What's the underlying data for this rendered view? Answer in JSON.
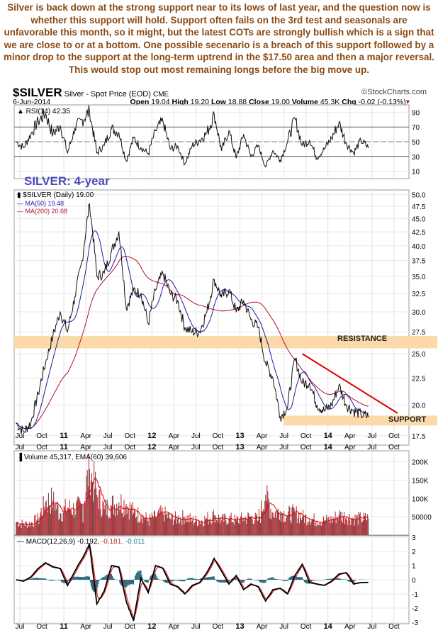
{
  "commentary": "Silver is back down at the strong support near to its lows of last year, and the question now is whether this support will hold. Support often fails on the 3rd test and seasonals are unfavorable this month, so it might, but the latest COTs are strongly bullish which is a sign that we are close to or at a bottom. One possible secenario is a breach of this support followed by a minor drop to the support at the long-term uptrend in the $17.50 area and then a major reversal. This would stop out most remaining longs before the big move up.",
  "header": {
    "symbol": "$SILVER",
    "name": "Silver - Spot Price (EOD)",
    "exchange": "CME",
    "source": "©StockCharts.com",
    "date": "6-Jun-2014",
    "open_label": "Open",
    "open": "19.04",
    "high_label": "High",
    "high": "19.20",
    "low_label": "Low",
    "low": "18.88",
    "close_label": "Close",
    "close": "19.00",
    "volume_label": "Volume",
    "volume": "45.3K",
    "chg_label": "Chg",
    "chg": "-0.02 (-0.13%)"
  },
  "colors": {
    "price": "#000000",
    "ma50": "#1a1aa0",
    "ma200": "#b01030",
    "band": "#fbd9a8",
    "trendline": "#e00000",
    "volume": "#c0343c",
    "volume_down": "#555555",
    "ema": "#e00000",
    "macd_hist": "#2a6b80",
    "note": "#8b4a12",
    "label_blue": "#4b4bbb"
  },
  "chart_data": [
    {
      "type": "line",
      "panel": "rsi",
      "legend": "RSI(14) 42.35",
      "yticks": [
        90,
        70,
        50,
        30,
        10
      ],
      "ylim": [
        0,
        100
      ],
      "overbought": 70,
      "oversold": 30,
      "values": [
        [
          "2010-06",
          50
        ],
        [
          "2010-07",
          42
        ],
        [
          "2010-08",
          60
        ],
        [
          "2010-09",
          78
        ],
        [
          "2010-10",
          88
        ],
        [
          "2010-11",
          60
        ],
        [
          "2010-12",
          72
        ],
        [
          "2011-01",
          35
        ],
        [
          "2011-02",
          68
        ],
        [
          "2011-03",
          80
        ],
        [
          "2011-04",
          91
        ],
        [
          "2011-05",
          35
        ],
        [
          "2011-06",
          45
        ],
        [
          "2011-07",
          68
        ],
        [
          "2011-08",
          62
        ],
        [
          "2011-09",
          24
        ],
        [
          "2011-10",
          55
        ],
        [
          "2011-11",
          42
        ],
        [
          "2011-12",
          34
        ],
        [
          "2012-01",
          65
        ],
        [
          "2012-02",
          78
        ],
        [
          "2012-03",
          40
        ],
        [
          "2012-04",
          44
        ],
        [
          "2012-05",
          20
        ],
        [
          "2012-06",
          45
        ],
        [
          "2012-07",
          52
        ],
        [
          "2012-08",
          62
        ],
        [
          "2012-09",
          87
        ],
        [
          "2012-10",
          38
        ],
        [
          "2012-11",
          65
        ],
        [
          "2012-12",
          28
        ],
        [
          "2013-01",
          60
        ],
        [
          "2013-02",
          30
        ],
        [
          "2013-03",
          45
        ],
        [
          "2013-04",
          16
        ],
        [
          "2013-05",
          38
        ],
        [
          "2013-06",
          25
        ],
        [
          "2013-07",
          50
        ],
        [
          "2013-08",
          82
        ],
        [
          "2013-09",
          45
        ],
        [
          "2013-10",
          52
        ],
        [
          "2013-11",
          28
        ],
        [
          "2013-12",
          40
        ],
        [
          "2014-01",
          55
        ],
        [
          "2014-02",
          76
        ],
        [
          "2014-03",
          48
        ],
        [
          "2014-04",
          35
        ],
        [
          "2014-05",
          52
        ],
        [
          "2014-06",
          42
        ]
      ]
    },
    {
      "type": "line",
      "panel": "price",
      "legend": "$SILVER (Daily) 19.00",
      "ma50_legend": "MA(50) 19.48",
      "ma200_legend": "MA(200) 20.68",
      "scale": "log",
      "ylim": [
        16.8,
        51
      ],
      "yticks": [
        "50.0",
        "47.5",
        "45.0",
        "42.5",
        "40.0",
        "37.5",
        "35.0",
        "32.5",
        "30.0",
        "27.5",
        "25.0",
        "22.5",
        "20.0",
        "17.5"
      ],
      "title_label": "SILVER: 4-year",
      "resistance_label": "RESISTANCE",
      "support_label": "SUPPORT",
      "resistance_zone": [
        25.6,
        27
      ],
      "support_zone": [
        18.3,
        19.1
      ],
      "trendline": [
        [
          "2013-09",
          25
        ],
        [
          "2014-10",
          19.3
        ]
      ],
      "values": [
        [
          "2010-06",
          18.5
        ],
        [
          "2010-07",
          17.8
        ],
        [
          "2010-08",
          18.5
        ],
        [
          "2010-09",
          21
        ],
        [
          "2010-10",
          24
        ],
        [
          "2010-11",
          27
        ],
        [
          "2010-12",
          30
        ],
        [
          "2011-01",
          27.5
        ],
        [
          "2011-02",
          32
        ],
        [
          "2011-03",
          37.5
        ],
        [
          "2011-04",
          48
        ],
        [
          "2011-05",
          35
        ],
        [
          "2011-06",
          35.5
        ],
        [
          "2011-07",
          39
        ],
        [
          "2011-08",
          42.5
        ],
        [
          "2011-09",
          30.5
        ],
        [
          "2011-10",
          33
        ],
        [
          "2011-11",
          32.5
        ],
        [
          "2011-12",
          28.5
        ],
        [
          "2012-01",
          33
        ],
        [
          "2012-02",
          35.5
        ],
        [
          "2012-03",
          32.5
        ],
        [
          "2012-04",
          31.5
        ],
        [
          "2012-05",
          28
        ],
        [
          "2012-06",
          27.5
        ],
        [
          "2012-07",
          27.5
        ],
        [
          "2012-08",
          30
        ],
        [
          "2012-09",
          34.5
        ],
        [
          "2012-10",
          32
        ],
        [
          "2012-11",
          33
        ],
        [
          "2012-12",
          30
        ],
        [
          "2013-01",
          31.5
        ],
        [
          "2013-02",
          29
        ],
        [
          "2013-03",
          28
        ],
        [
          "2013-04",
          24
        ],
        [
          "2013-05",
          22.5
        ],
        [
          "2013-06",
          19
        ],
        [
          "2013-07",
          19.8
        ],
        [
          "2013-08",
          24.5
        ],
        [
          "2013-09",
          22
        ],
        [
          "2013-10",
          22
        ],
        [
          "2013-11",
          20
        ],
        [
          "2013-12",
          19.5
        ],
        [
          "2014-01",
          20
        ],
        [
          "2014-02",
          21.8
        ],
        [
          "2014-03",
          20
        ],
        [
          "2014-04",
          19.5
        ],
        [
          "2014-05",
          19.2
        ],
        [
          "2014-06",
          19
        ]
      ]
    },
    {
      "type": "bar",
      "panel": "volume",
      "legend": "Volume 45,317, EMA(60) 39,606",
      "yticks": [
        "200K",
        "150K",
        "100K",
        "50000"
      ],
      "ylim": [
        0,
        230000
      ],
      "values": [
        [
          "2010-06",
          35000
        ],
        [
          "2010-07",
          30000
        ],
        [
          "2010-08",
          32000
        ],
        [
          "2010-09",
          45000
        ],
        [
          "2010-10",
          90000
        ],
        [
          "2010-11",
          95000
        ],
        [
          "2010-12",
          60000
        ],
        [
          "2011-01",
          75000
        ],
        [
          "2011-02",
          70000
        ],
        [
          "2011-03",
          80000
        ],
        [
          "2011-04",
          180000
        ],
        [
          "2011-05",
          110000
        ],
        [
          "2011-06",
          70000
        ],
        [
          "2011-07",
          80000
        ],
        [
          "2011-08",
          90000
        ],
        [
          "2011-09",
          85000
        ],
        [
          "2011-10",
          60000
        ],
        [
          "2011-11",
          55000
        ],
        [
          "2011-12",
          40000
        ],
        [
          "2012-01",
          50000
        ],
        [
          "2012-02",
          60000
        ],
        [
          "2012-03",
          45000
        ],
        [
          "2012-04",
          45000
        ],
        [
          "2012-05",
          50000
        ],
        [
          "2012-06",
          40000
        ],
        [
          "2012-07",
          38000
        ],
        [
          "2012-08",
          45000
        ],
        [
          "2012-09",
          55000
        ],
        [
          "2012-10",
          40000
        ],
        [
          "2012-11",
          45000
        ],
        [
          "2012-12",
          40000
        ],
        [
          "2013-01",
          45000
        ],
        [
          "2013-02",
          50000
        ],
        [
          "2013-03",
          40000
        ],
        [
          "2013-04",
          110000
        ],
        [
          "2013-05",
          60000
        ],
        [
          "2013-06",
          65000
        ],
        [
          "2013-07",
          55000
        ],
        [
          "2013-08",
          60000
        ],
        [
          "2013-09",
          50000
        ],
        [
          "2013-10",
          45000
        ],
        [
          "2013-11",
          40000
        ],
        [
          "2013-12",
          40000
        ],
        [
          "2014-01",
          42000
        ],
        [
          "2014-02",
          55000
        ],
        [
          "2014-03",
          50000
        ],
        [
          "2014-04",
          45000
        ],
        [
          "2014-05",
          45000
        ],
        [
          "2014-06",
          45317
        ]
      ]
    },
    {
      "type": "line",
      "panel": "macd",
      "legend": "MACD(12,26,9)",
      "macd": "-0.192",
      "signal": "-0.181",
      "hist": "-0.011",
      "yticks": [
        "3",
        "2",
        "1",
        "0",
        "-1",
        "-2",
        "-3"
      ],
      "ylim": [
        -3.1,
        3.1
      ],
      "values": [
        [
          "2010-06",
          0
        ],
        [
          "2010-07",
          -0.1
        ],
        [
          "2010-08",
          0.2
        ],
        [
          "2010-09",
          0.8
        ],
        [
          "2010-10",
          1.2
        ],
        [
          "2010-11",
          0.9
        ],
        [
          "2010-12",
          0.8
        ],
        [
          "2011-01",
          -0.4
        ],
        [
          "2011-02",
          0.6
        ],
        [
          "2011-03",
          1.5
        ],
        [
          "2011-04",
          2.5
        ],
        [
          "2011-05",
          -1.7
        ],
        [
          "2011-06",
          -0.8
        ],
        [
          "2011-07",
          1.0
        ],
        [
          "2011-08",
          0.9
        ],
        [
          "2011-09",
          -1.5
        ],
        [
          "2011-10",
          -2.9
        ],
        [
          "2011-11",
          0.1
        ],
        [
          "2011-12",
          -0.9
        ],
        [
          "2012-01",
          1.0
        ],
        [
          "2012-02",
          0.8
        ],
        [
          "2012-03",
          -0.3
        ],
        [
          "2012-04",
          -0.5
        ],
        [
          "2012-05",
          -1.0
        ],
        [
          "2012-06",
          -0.4
        ],
        [
          "2012-07",
          -0.2
        ],
        [
          "2012-08",
          0.5
        ],
        [
          "2012-09",
          1.5
        ],
        [
          "2012-10",
          0.6
        ],
        [
          "2012-11",
          -0.3
        ],
        [
          "2012-12",
          0.3
        ],
        [
          "2013-01",
          -0.7
        ],
        [
          "2013-02",
          -0.3
        ],
        [
          "2013-03",
          -0.5
        ],
        [
          "2013-04",
          -1.5
        ],
        [
          "2013-05",
          -0.7
        ],
        [
          "2013-06",
          -0.6
        ],
        [
          "2013-07",
          -1.0
        ],
        [
          "2013-08",
          0.3
        ],
        [
          "2013-09",
          1.1
        ],
        [
          "2013-10",
          -0.2
        ],
        [
          "2013-11",
          -0.3
        ],
        [
          "2013-12",
          -0.4
        ],
        [
          "2014-01",
          -0.1
        ],
        [
          "2014-02",
          0.4
        ],
        [
          "2014-03",
          0.5
        ],
        [
          "2014-04",
          -0.3
        ],
        [
          "2014-05",
          -0.2
        ],
        [
          "2014-06",
          -0.19
        ]
      ]
    }
  ],
  "xaxis": {
    "ticks": [
      "Jul",
      "Oct",
      "11",
      "Apr",
      "Jul",
      "Oct",
      "12",
      "Apr",
      "Jul",
      "Oct",
      "13",
      "Apr",
      "Jul",
      "Oct",
      "14",
      "Apr",
      "Jul",
      "Oct"
    ],
    "bold": [
      "11",
      "12",
      "13",
      "14"
    ]
  }
}
